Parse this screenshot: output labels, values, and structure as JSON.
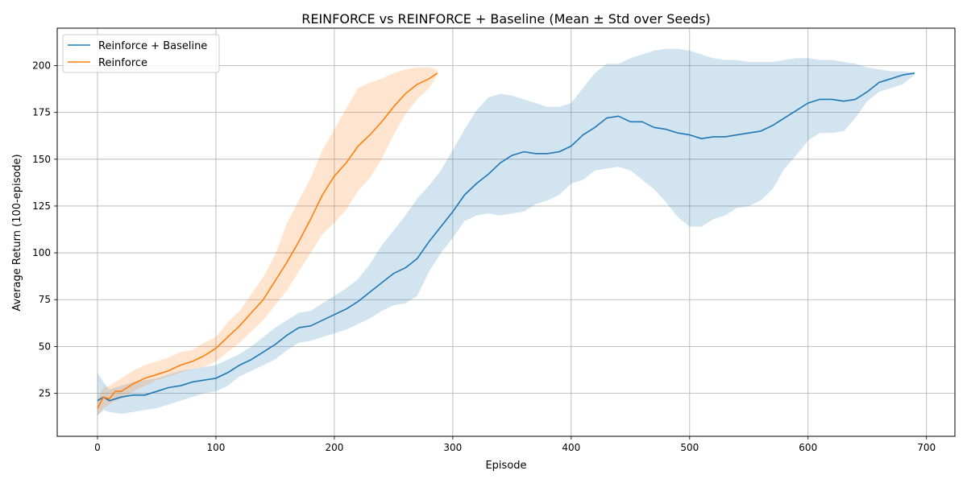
{
  "chart_data": {
    "type": "line",
    "title": "REINFORCE vs REINFORCE + Baseline (Mean ± Std over Seeds)",
    "xlabel": "Episode",
    "ylabel": "Average Return (100-episode)",
    "xlim": [
      -34,
      724
    ],
    "ylim": [
      2,
      220
    ],
    "xticks": [
      0,
      100,
      200,
      300,
      400,
      500,
      600,
      700
    ],
    "yticks": [
      25,
      50,
      75,
      100,
      125,
      150,
      175,
      200
    ],
    "grid": true,
    "legend_position": "top-left",
    "series": [
      {
        "name": "Reinforce + Baseline",
        "color": "#1f77b4",
        "band_color": "#1f77b4",
        "band_opacity": 0.2,
        "x": [
          0,
          5,
          10,
          20,
          30,
          40,
          50,
          60,
          70,
          80,
          90,
          100,
          110,
          120,
          130,
          140,
          150,
          160,
          170,
          180,
          190,
          200,
          210,
          220,
          230,
          240,
          250,
          260,
          270,
          280,
          290,
          300,
          310,
          320,
          330,
          340,
          350,
          360,
          370,
          380,
          390,
          400,
          410,
          420,
          430,
          440,
          450,
          460,
          470,
          480,
          490,
          500,
          510,
          520,
          530,
          540,
          550,
          560,
          570,
          580,
          590,
          600,
          610,
          620,
          630,
          640,
          650,
          660,
          670,
          680,
          690
        ],
        "mean": [
          21,
          23,
          21,
          23,
          24,
          24,
          26,
          28,
          29,
          31,
          32,
          33,
          36,
          40,
          43,
          47,
          51,
          56,
          60,
          61,
          64,
          67,
          70,
          74,
          79,
          84,
          89,
          92,
          97,
          106,
          114,
          122,
          131,
          137,
          142,
          148,
          152,
          154,
          153,
          153,
          154,
          157,
          163,
          167,
          172,
          173,
          170,
          170,
          167,
          166,
          164,
          163,
          161,
          162,
          162,
          163,
          164,
          165,
          168,
          172,
          176,
          180,
          182,
          182,
          181,
          182,
          186,
          191,
          193,
          195,
          196
        ],
        "upper": [
          36,
          31,
          27,
          29,
          31,
          32,
          33,
          35,
          37,
          38,
          39,
          40,
          43,
          46,
          50,
          55,
          60,
          64,
          68,
          69,
          73,
          77,
          81,
          86,
          94,
          104,
          112,
          120,
          129,
          136,
          144,
          155,
          166,
          176,
          183,
          185,
          184,
          182,
          180,
          178,
          178,
          180,
          188,
          196,
          201,
          201,
          204,
          206,
          208,
          209,
          209,
          208,
          206,
          204,
          203,
          203,
          202,
          202,
          202,
          203,
          204,
          204,
          203,
          203,
          202,
          201,
          199,
          198,
          197,
          197,
          196
        ],
        "lower": [
          13,
          16,
          15,
          14,
          15,
          16,
          17,
          19,
          21,
          23,
          25,
          26,
          29,
          34,
          37,
          40,
          43,
          48,
          52,
          53,
          55,
          57,
          59,
          62,
          65,
          69,
          72,
          73,
          77,
          90,
          100,
          108,
          117,
          120,
          121,
          120,
          121,
          122,
          126,
          128,
          131,
          137,
          139,
          144,
          145,
          146,
          144,
          139,
          134,
          127,
          119,
          114,
          114,
          118,
          120,
          124,
          125,
          128,
          134,
          145,
          152,
          160,
          164,
          164,
          165,
          172,
          181,
          186,
          188,
          190,
          195
        ]
      },
      {
        "name": "Reinforce",
        "color": "#ff7f0e",
        "band_color": "#ff7f0e",
        "band_opacity": 0.2,
        "x": [
          0,
          5,
          10,
          15,
          20,
          30,
          40,
          50,
          60,
          70,
          80,
          90,
          100,
          110,
          120,
          130,
          140,
          150,
          160,
          170,
          180,
          190,
          200,
          210,
          220,
          230,
          240,
          250,
          260,
          270,
          280,
          287
        ],
        "mean": [
          17,
          23,
          22,
          26,
          26,
          30,
          33,
          35,
          37,
          40,
          42,
          45,
          49,
          55,
          61,
          68,
          75,
          85,
          95,
          106,
          118,
          131,
          141,
          148,
          157,
          163,
          170,
          178,
          185,
          190,
          193,
          196
        ],
        "upper": [
          22,
          28,
          29,
          31,
          33,
          37,
          40,
          42,
          44,
          47,
          48,
          52,
          55,
          63,
          69,
          78,
          87,
          99,
          116,
          128,
          140,
          155,
          166,
          177,
          188,
          191,
          193,
          196,
          198,
          199,
          199,
          198
        ],
        "lower": [
          13,
          17,
          19,
          21,
          22,
          26,
          29,
          32,
          34,
          36,
          38,
          39,
          42,
          47,
          52,
          58,
          64,
          72,
          80,
          90,
          100,
          110,
          116,
          123,
          133,
          140,
          150,
          163,
          174,
          182,
          188,
          195
        ]
      }
    ]
  }
}
